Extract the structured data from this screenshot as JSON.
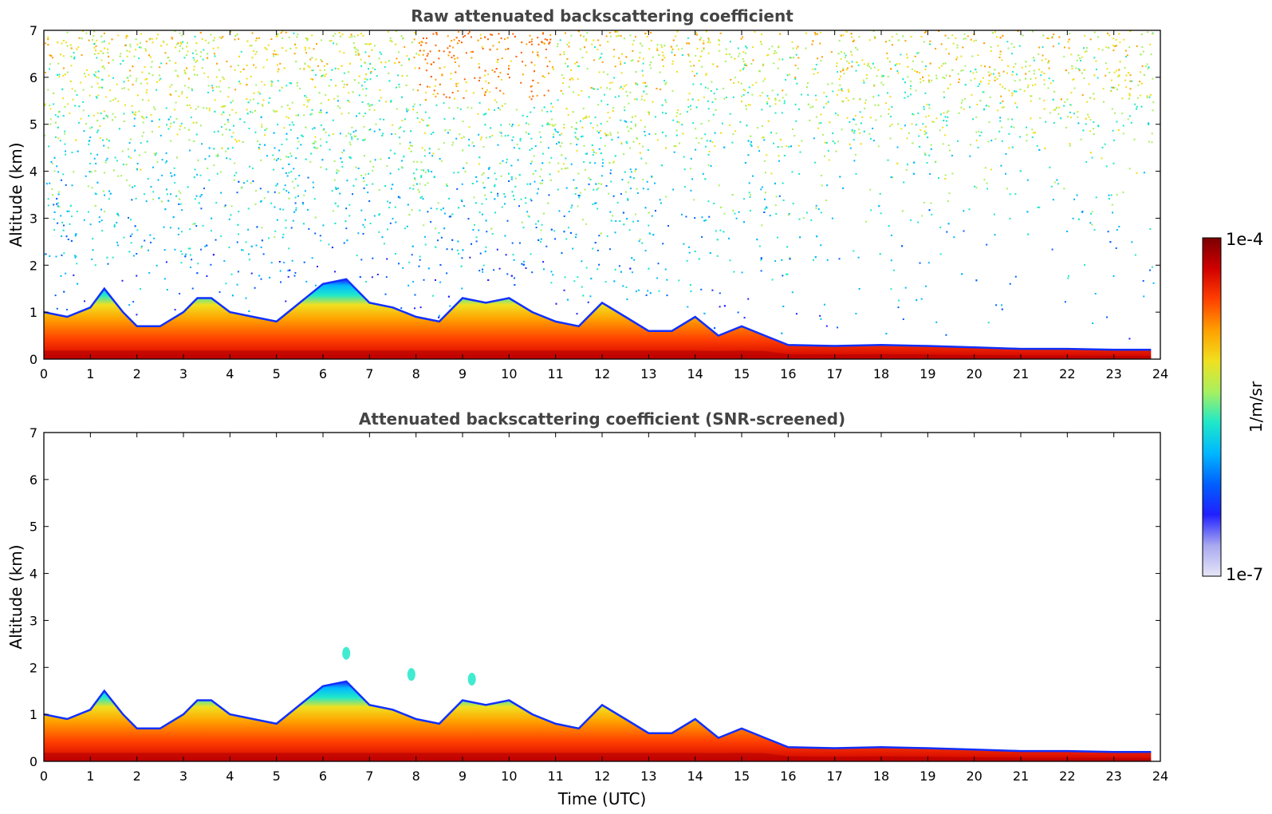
{
  "chart_data": [
    {
      "type": "heatmap",
      "title": "Raw attenuated backscattering coefficient",
      "xlabel": "",
      "ylabel": "Altitude (km)",
      "xlim": [
        0,
        24
      ],
      "ylim": [
        0,
        7
      ],
      "x_ticks": [
        0,
        1,
        2,
        3,
        4,
        5,
        6,
        7,
        8,
        9,
        10,
        11,
        12,
        13,
        14,
        15,
        16,
        17,
        18,
        19,
        20,
        21,
        22,
        23,
        24
      ],
      "y_ticks": [
        0,
        1,
        2,
        3,
        4,
        5,
        6,
        7
      ],
      "layer_top_km": {
        "x": [
          0,
          0.5,
          1,
          1.3,
          1.7,
          2,
          2.5,
          3,
          3.3,
          3.6,
          4,
          4.5,
          5,
          5.5,
          6,
          6.5,
          7,
          7.5,
          8,
          8.5,
          9,
          9.5,
          10,
          10.5,
          11,
          11.5,
          12,
          12.5,
          13,
          13.5,
          14,
          14.5,
          15,
          15.5,
          16,
          17,
          18,
          19,
          20,
          21,
          22,
          23,
          23.8
        ],
        "y": [
          1.0,
          0.9,
          1.1,
          1.5,
          1.0,
          0.7,
          0.7,
          1.0,
          1.3,
          1.3,
          1.0,
          0.9,
          0.8,
          1.2,
          1.6,
          1.7,
          1.2,
          1.1,
          0.9,
          0.8,
          1.3,
          1.2,
          1.3,
          1.0,
          0.8,
          0.7,
          1.2,
          0.9,
          0.6,
          0.6,
          0.9,
          0.5,
          0.7,
          0.5,
          0.3,
          0.28,
          0.3,
          0.28,
          0.25,
          0.22,
          0.22,
          0.2,
          0.2
        ]
      },
      "noise_region": "scattered signal from near-surface layer up to 7 km; denser aloft before ~16 UTC"
    },
    {
      "type": "heatmap",
      "title": "Attenuated backscattering coefficient (SNR-screened)",
      "xlabel": "Time (UTC)",
      "ylabel": "Altitude (km)",
      "xlim": [
        0,
        24
      ],
      "ylim": [
        0,
        7
      ],
      "x_ticks": [
        0,
        1,
        2,
        3,
        4,
        5,
        6,
        7,
        8,
        9,
        10,
        11,
        12,
        13,
        14,
        15,
        16,
        17,
        18,
        19,
        20,
        21,
        22,
        23,
        24
      ],
      "y_ticks": [
        0,
        1,
        2,
        3,
        4,
        5,
        6,
        7
      ],
      "layer_top_km": {
        "x": [
          0,
          0.5,
          1,
          1.3,
          1.7,
          2,
          2.5,
          3,
          3.3,
          3.6,
          4,
          4.5,
          5,
          5.5,
          6,
          6.5,
          7,
          7.5,
          8,
          8.5,
          9,
          9.5,
          10,
          10.5,
          11,
          11.5,
          12,
          12.5,
          13,
          13.5,
          14,
          14.5,
          15,
          15.5,
          16,
          17,
          18,
          19,
          20,
          21,
          22,
          23,
          23.8
        ],
        "y": [
          1.0,
          0.9,
          1.1,
          1.5,
          1.0,
          0.7,
          0.7,
          1.0,
          1.3,
          1.3,
          1.0,
          0.9,
          0.8,
          1.2,
          1.6,
          1.7,
          1.2,
          1.1,
          0.9,
          0.8,
          1.3,
          1.2,
          1.3,
          1.0,
          0.8,
          0.7,
          1.2,
          0.9,
          0.6,
          0.6,
          0.9,
          0.5,
          0.7,
          0.5,
          0.3,
          0.28,
          0.3,
          0.28,
          0.25,
          0.22,
          0.22,
          0.2,
          0.2
        ]
      },
      "isolated_features": [
        {
          "x": 7.9,
          "y": 1.85
        },
        {
          "x": 9.2,
          "y": 1.75
        },
        {
          "x": 6.5,
          "y": 2.3
        }
      ]
    }
  ],
  "colorbar": {
    "label": "1/m/sr",
    "max_label": "1e-4",
    "min_label": "1e-7",
    "scale": "log",
    "colors": [
      "#e6e6f7",
      "#a8a8f0",
      "#2020ff",
      "#0060ff",
      "#00b8ff",
      "#20e8c8",
      "#a8f060",
      "#f0e020",
      "#ffa000",
      "#ff4000",
      "#d00000",
      "#7a0000"
    ]
  }
}
